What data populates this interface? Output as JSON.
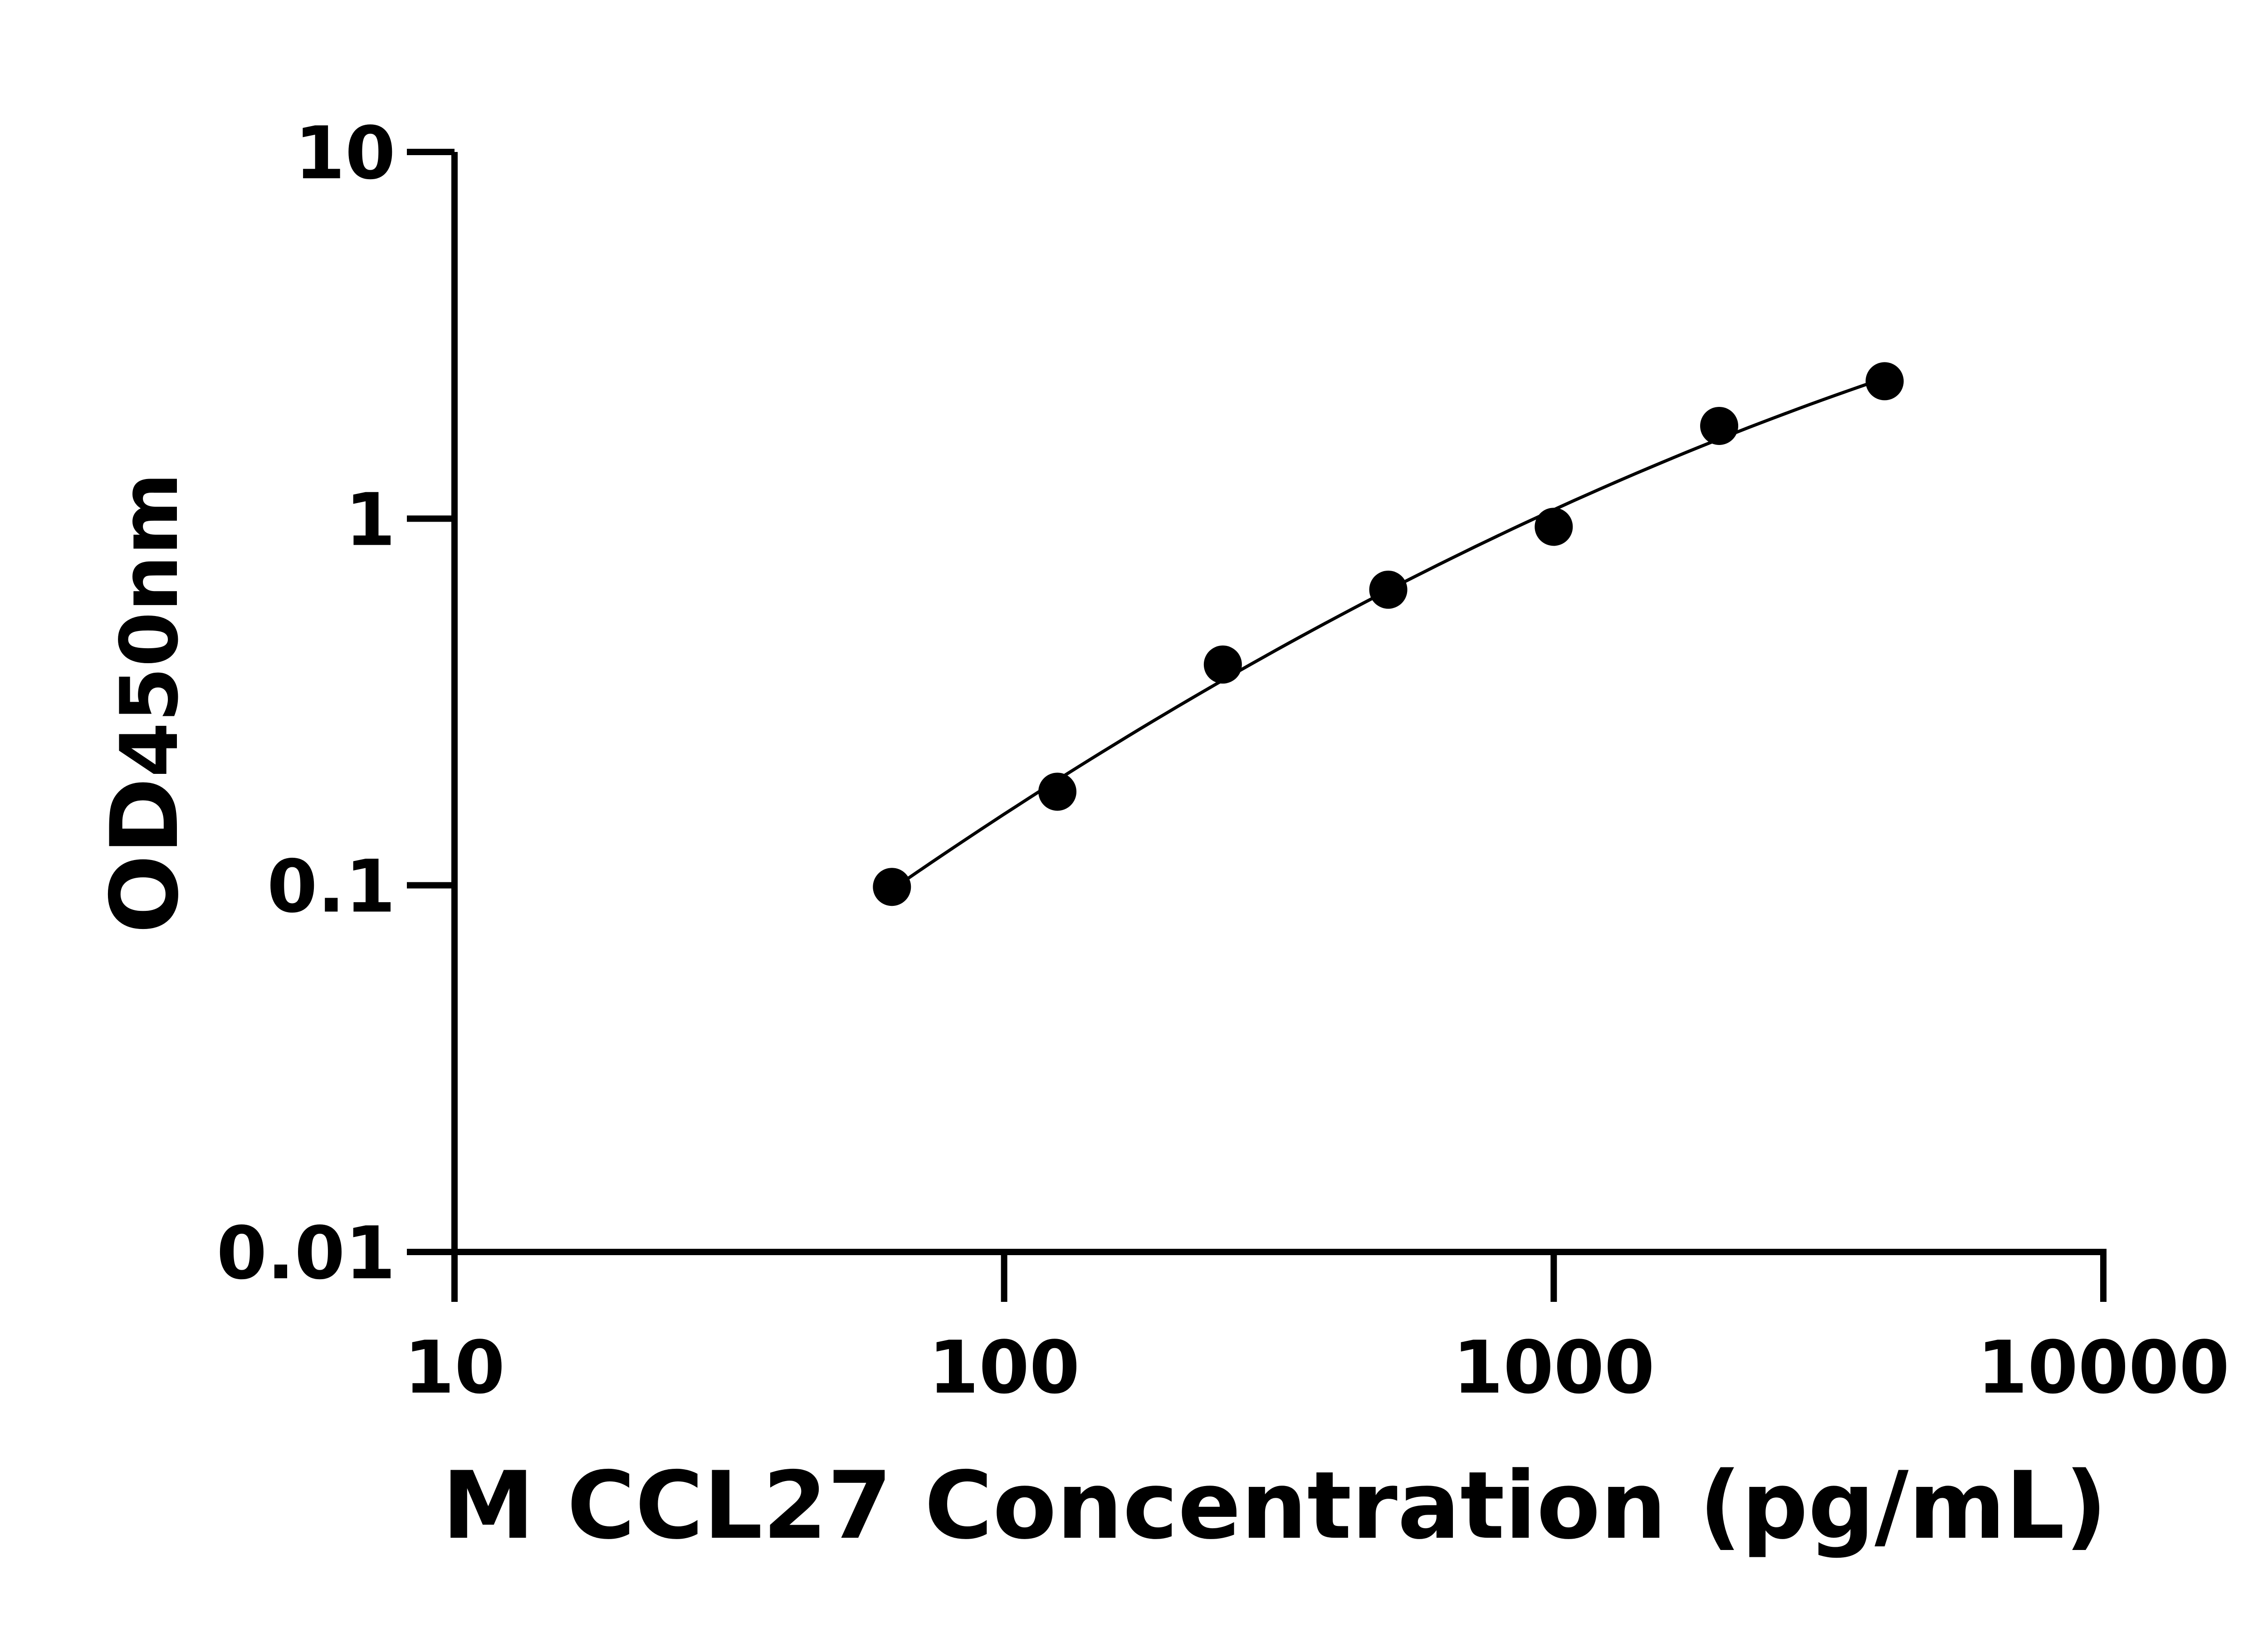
{
  "chart_data": {
    "type": "scatter",
    "title": "",
    "xlabel": "M CCL27 Concentration (pg/mL)",
    "ylabel_main": "OD",
    "ylabel_sub": "450nm",
    "x_scale": "log",
    "y_scale": "log",
    "xlim": [
      10,
      10000
    ],
    "ylim": [
      0.01,
      10
    ],
    "x_ticks": [
      "10",
      "100",
      "1000",
      "10000"
    ],
    "y_ticks": [
      "0.01",
      "0.1",
      "1",
      "10"
    ],
    "grid": false,
    "fit_curve": true,
    "points": [
      {
        "x": 62.5,
        "y": 0.099
      },
      {
        "x": 125,
        "y": 0.18
      },
      {
        "x": 250,
        "y": 0.4
      },
      {
        "x": 500,
        "y": 0.64
      },
      {
        "x": 1000,
        "y": 0.95
      },
      {
        "x": 2000,
        "y": 1.79
      },
      {
        "x": 4000,
        "y": 2.37
      }
    ],
    "colors": {
      "marker": "#000000",
      "line": "#000000"
    }
  }
}
